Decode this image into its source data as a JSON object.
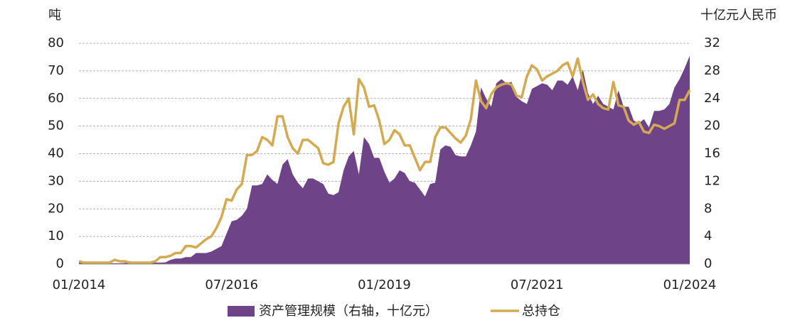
{
  "chart_data": {
    "type": "area_line",
    "y_label": "吨",
    "y2_label": "十亿元人民币",
    "categories": [
      "01/2014",
      null,
      null,
      null,
      null,
      null,
      null,
      null,
      null,
      null,
      null,
      null,
      null,
      null,
      null,
      null,
      null,
      null,
      null,
      null,
      null,
      null,
      null,
      null,
      null,
      null,
      null,
      null,
      null,
      null,
      "07/2016",
      null,
      null,
      null,
      null,
      null,
      null,
      null,
      null,
      null,
      null,
      null,
      null,
      null,
      null,
      null,
      null,
      null,
      null,
      null,
      null,
      null,
      null,
      null,
      null,
      null,
      null,
      null,
      null,
      null,
      "01/2019",
      null,
      null,
      null,
      null,
      null,
      null,
      null,
      null,
      null,
      null,
      null,
      null,
      null,
      null,
      null,
      null,
      null,
      null,
      null,
      null,
      null,
      null,
      null,
      null,
      null,
      null,
      null,
      null,
      null,
      "07/2021",
      null,
      null,
      null,
      null,
      null,
      null,
      null,
      null,
      null,
      null,
      null,
      null,
      null,
      null,
      null,
      null,
      null,
      null,
      null,
      null,
      null,
      null,
      null,
      null,
      null,
      null,
      null,
      null,
      null,
      "01/2024"
    ],
    "ylim": [
      0,
      80
    ],
    "yticks": [
      0,
      10,
      20,
      30,
      40,
      50,
      60,
      70,
      80
    ],
    "y2lim": [
      0,
      32
    ],
    "y2ticks": [
      0,
      4,
      8,
      12,
      16,
      20,
      24,
      28,
      32
    ],
    "grid": true,
    "series": [
      {
        "name": "资产管理规模（右轴，十亿元）",
        "color": "#6f4387",
        "axis": "y2",
        "kind": "area",
        "values": [
          0.2,
          0.16,
          0.12,
          0.12,
          0.12,
          0.12,
          0.12,
          0.12,
          0.12,
          0.16,
          0.4,
          0.24,
          0.2,
          0.2,
          0.2,
          0.2,
          0.2,
          0.24,
          0.6,
          0.8,
          0.8,
          1,
          1,
          1.6,
          1.6,
          1.6,
          1.8,
          2.2,
          2.6,
          4.4,
          6.2,
          6.4,
          7,
          8,
          11.4,
          11.4,
          11.6,
          13,
          12.2,
          11.6,
          14.4,
          15.2,
          13,
          11.8,
          11,
          12.4,
          12.4,
          12,
          11.6,
          10.2,
          10,
          10.4,
          13.6,
          15.6,
          16.4,
          13,
          18.4,
          17.4,
          15.4,
          15.4,
          13.4,
          11.8,
          12.4,
          13.6,
          13.2,
          12,
          11.8,
          10.8,
          9.8,
          11.6,
          11.8,
          16.6,
          17.2,
          17,
          15.8,
          15.6,
          15.6,
          17.2,
          19.2,
          25.6,
          24,
          22.8,
          26.2,
          26.8,
          26.2,
          26.4,
          24.2,
          23.6,
          23.2,
          25.4,
          25.8,
          26.2,
          26,
          25.2,
          26.6,
          26.6,
          26,
          27.2,
          25.2,
          28.2,
          24.8,
          23.2,
          24.4,
          23.2,
          22.8,
          22.4,
          25.2,
          22.8,
          22.8,
          20.8,
          20.4,
          21,
          19.8,
          22.2,
          22.2,
          22.4,
          23.2,
          25.6,
          26.8,
          28.4,
          30.2
        ]
      },
      {
        "name": "总持仓",
        "color": "#d4aa50",
        "axis": "y",
        "kind": "line",
        "values": [
          1,
          0.5,
          0.5,
          0.5,
          0.5,
          0.5,
          0.5,
          1.5,
          1,
          1,
          0.5,
          0.5,
          0.5,
          0.5,
          0.5,
          1,
          2.5,
          2.5,
          3,
          4,
          4,
          6.5,
          6.5,
          6,
          7.5,
          9,
          10,
          13,
          17,
          23.5,
          23,
          27,
          29,
          39.5,
          39.5,
          41,
          46,
          45,
          43,
          53.5,
          53.5,
          46,
          42,
          40,
          45,
          45,
          43.5,
          42,
          36.5,
          36,
          37,
          51,
          57,
          60,
          47,
          67,
          64,
          57,
          57.5,
          52,
          43.5,
          45,
          48.5,
          47,
          43,
          43,
          38.5,
          34,
          37,
          37,
          46,
          49.5,
          49.5,
          47.5,
          45.5,
          44,
          46.5,
          52.5,
          66.5,
          59,
          56.5,
          61.5,
          64,
          65,
          65.5,
          65,
          61,
          60.5,
          68,
          72,
          70.5,
          66.5,
          68,
          69,
          70,
          72,
          73,
          68,
          74.5,
          66,
          59.5,
          61.5,
          58,
          56.5,
          56,
          66,
          57.5,
          57,
          52,
          50.5,
          51.5,
          48,
          47.5,
          50.5,
          50,
          49,
          50,
          51,
          59.5,
          59.5,
          63
        ]
      }
    ]
  }
}
